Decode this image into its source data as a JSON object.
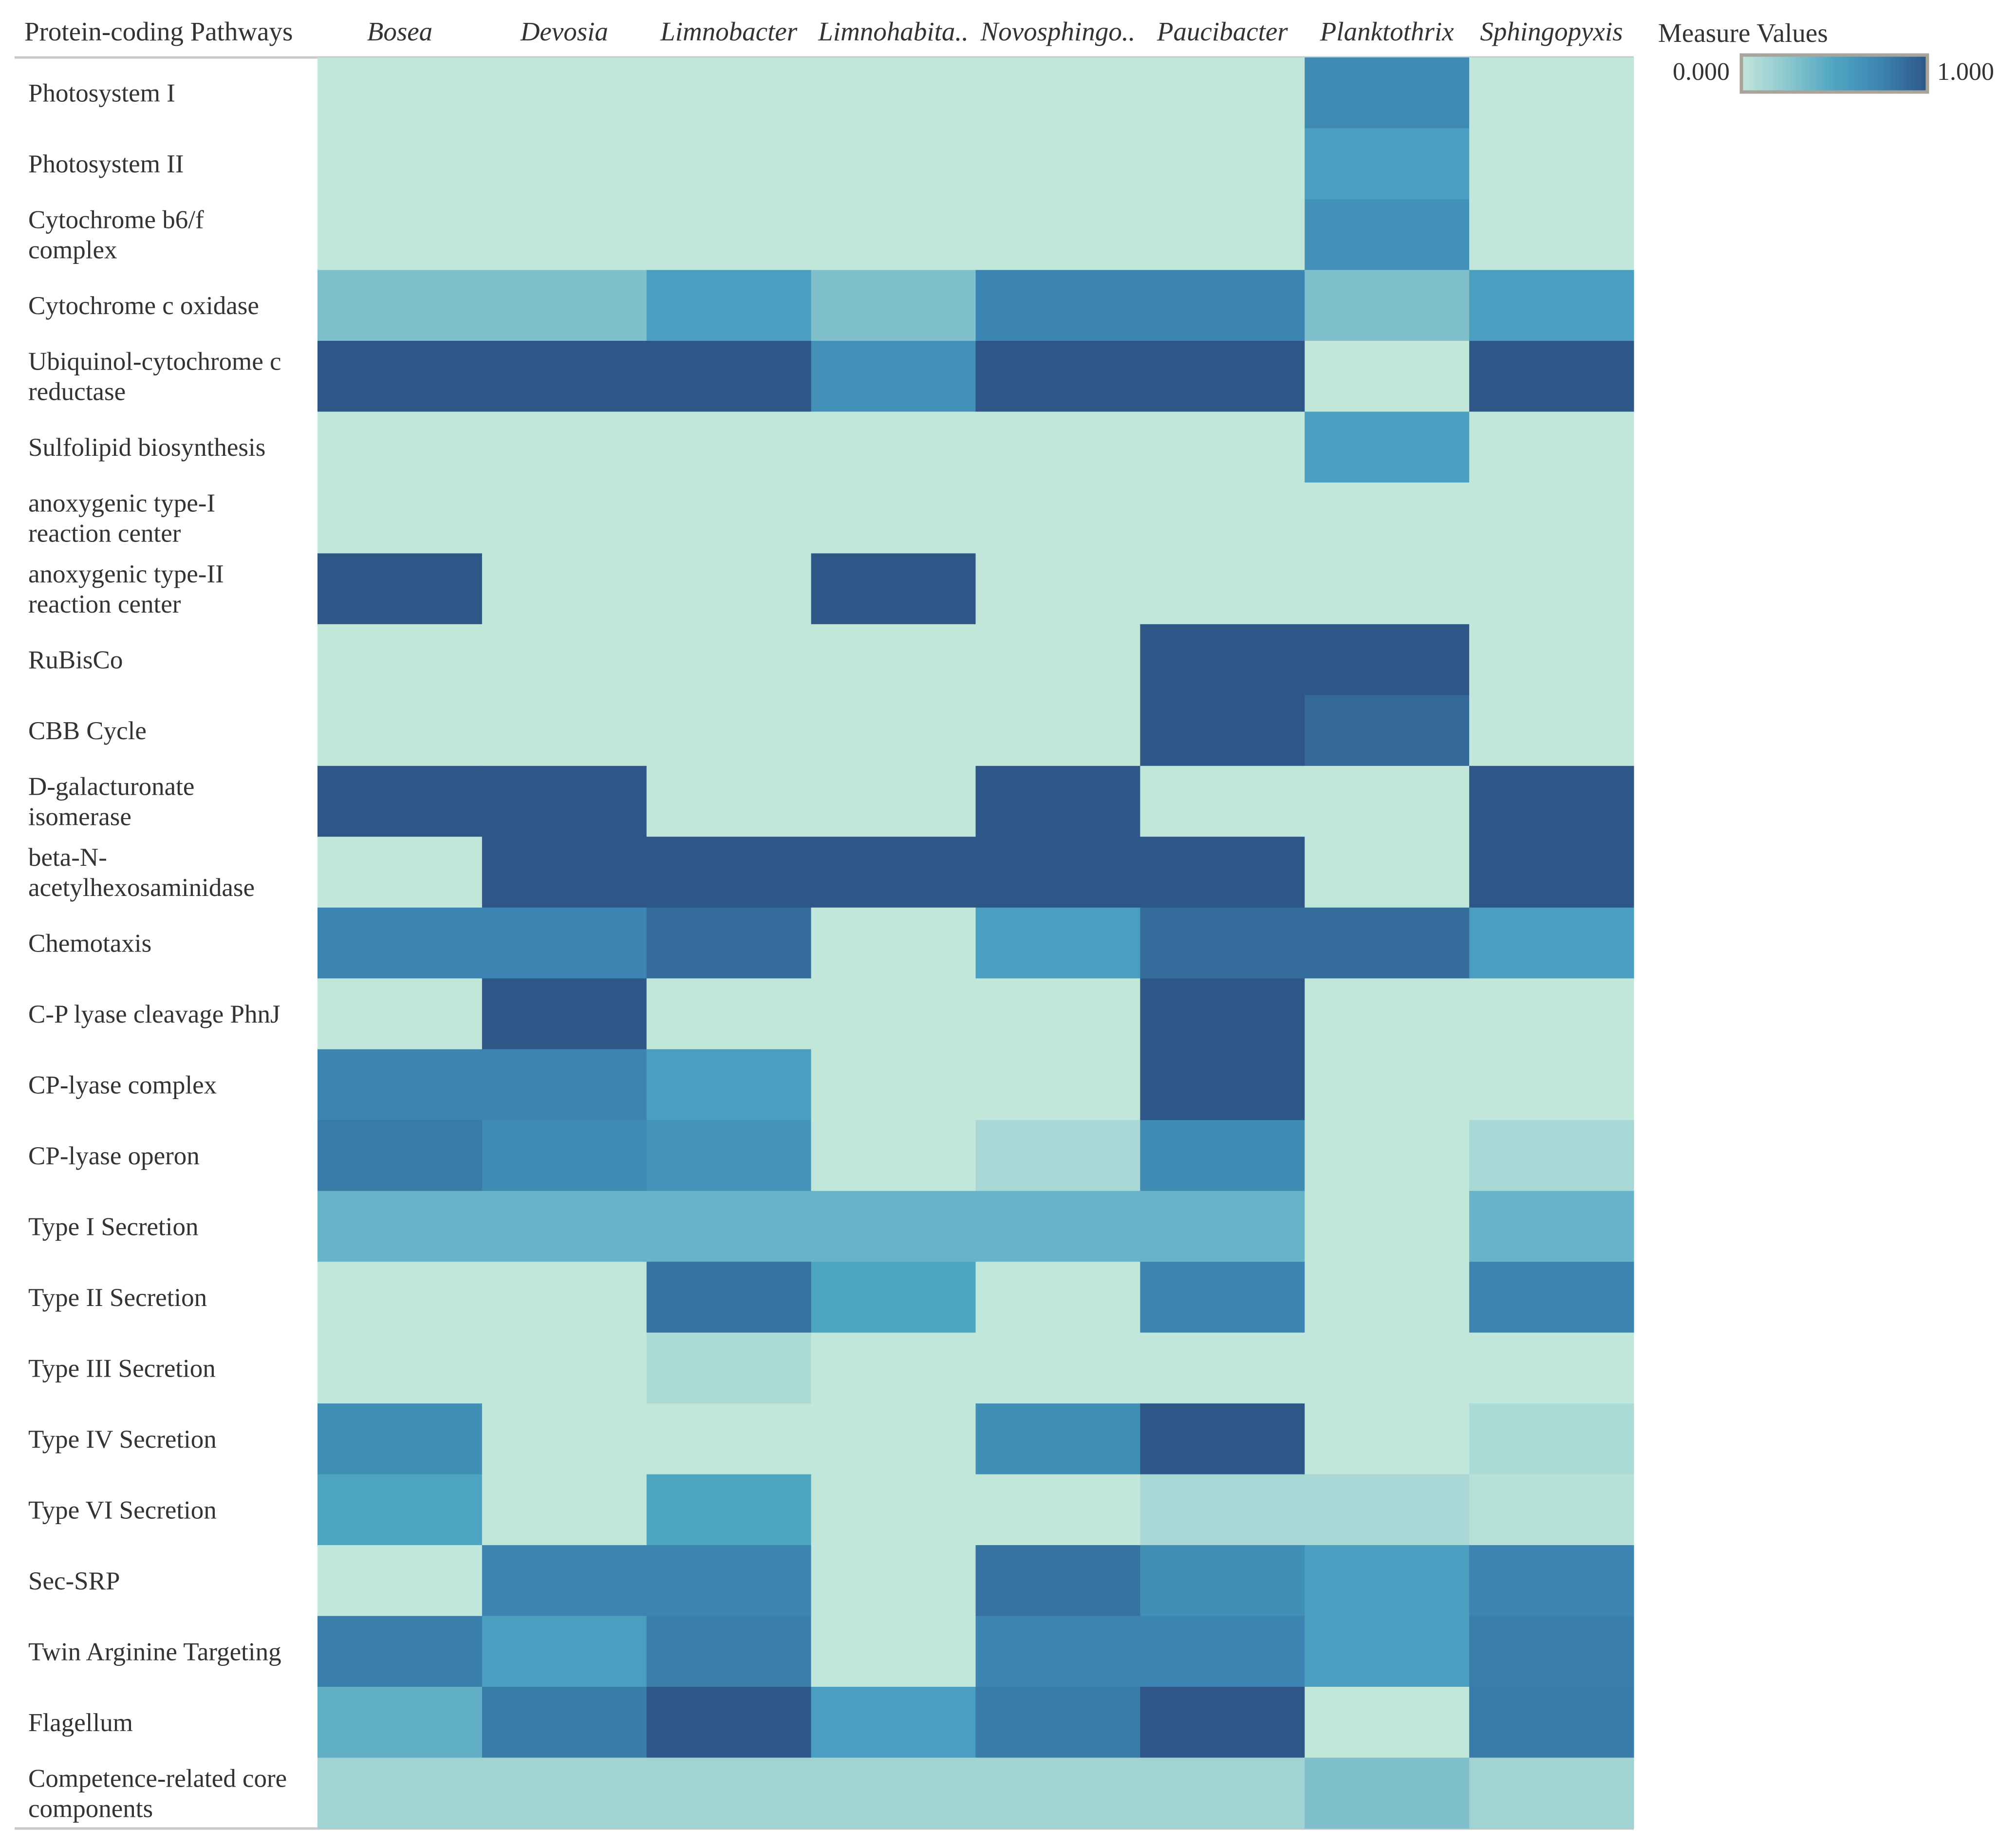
{
  "chart_data": {
    "type": "heatmap",
    "row_header": "Protein-coding Pathways",
    "columns": [
      "Bosea",
      "Devosia",
      "Limnobacter",
      "Limnohabita..",
      "Novosphingo..",
      "Paucibacter",
      "Planktothrix",
      "Sphingopyxis"
    ],
    "rows": [
      {
        "label": [
          "Photosystem I"
        ],
        "values": [
          0,
          0,
          0,
          0,
          0,
          0,
          0.7,
          0
        ]
      },
      {
        "label": [
          "Photosystem II"
        ],
        "values": [
          0,
          0,
          0,
          0,
          0,
          0,
          0.55,
          0
        ]
      },
      {
        "label": [
          "Cytochrome b6/f",
          "complex"
        ],
        "values": [
          0,
          0,
          0,
          0,
          0,
          0,
          0.65,
          0
        ]
      },
      {
        "label": [
          "Cytochrome c oxidase"
        ],
        "values": [
          0.3,
          0.3,
          0.55,
          0.3,
          0.75,
          0.75,
          0.3,
          0.55
        ]
      },
      {
        "label": [
          "Ubiquinol-cytochrome c",
          "reductase"
        ],
        "values": [
          1,
          1,
          1,
          0.65,
          1,
          1,
          0,
          1
        ]
      },
      {
        "label": [
          "Sulfolipid biosynthesis"
        ],
        "values": [
          0,
          0,
          0,
          0,
          0,
          0,
          0.55,
          0
        ]
      },
      {
        "label": [
          "anoxygenic type-I",
          "reaction center"
        ],
        "values": [
          0,
          0,
          0,
          0,
          0,
          0,
          0,
          0
        ]
      },
      {
        "label": [
          "anoxygenic type-II",
          "reaction center"
        ],
        "values": [
          1,
          0,
          0,
          1,
          0,
          0,
          0,
          0
        ]
      },
      {
        "label": [
          "RuBisCo"
        ],
        "values": [
          0,
          0,
          0,
          0,
          0,
          1,
          1,
          0
        ]
      },
      {
        "label": [
          "CBB Cycle"
        ],
        "values": [
          0,
          0,
          0,
          0,
          0,
          1,
          0.9,
          0
        ]
      },
      {
        "label": [
          "D-galacturonate",
          "isomerase"
        ],
        "values": [
          1,
          1,
          0,
          0,
          1,
          0,
          0,
          1
        ]
      },
      {
        "label": [
          "beta-N-",
          "acetylhexosaminidase"
        ],
        "values": [
          0,
          1,
          1,
          1,
          1,
          1,
          0,
          1
        ]
      },
      {
        "label": [
          "Chemotaxis"
        ],
        "values": [
          0.75,
          0.75,
          0.88,
          0,
          0.55,
          0.88,
          0.88,
          0.55
        ]
      },
      {
        "label": [
          "C-P lyase cleavage PhnJ"
        ],
        "values": [
          0,
          1,
          0,
          0,
          0,
          1,
          0,
          0
        ]
      },
      {
        "label": [
          "CP-lyase complex"
        ],
        "values": [
          0.75,
          0.75,
          0.55,
          0,
          0,
          1,
          0,
          0
        ]
      },
      {
        "label": [
          "CP-lyase operon"
        ],
        "values": [
          0.8,
          0.7,
          0.62,
          0,
          0.12,
          0.7,
          0,
          0.12
        ]
      },
      {
        "label": [
          "Type I Secretion"
        ],
        "values": [
          0.4,
          0.4,
          0.4,
          0.4,
          0.4,
          0.4,
          0,
          0.4
        ]
      },
      {
        "label": [
          "Type II Secretion"
        ],
        "values": [
          0,
          0,
          0.85,
          0.5,
          0,
          0.75,
          0,
          0.75
        ]
      },
      {
        "label": [
          "Type III Secretion"
        ],
        "values": [
          0,
          0,
          0.1,
          0,
          0,
          0,
          0,
          0
        ]
      },
      {
        "label": [
          "Type IV Secretion"
        ],
        "values": [
          0.67,
          0,
          0,
          0,
          0.67,
          1,
          0,
          0.1
        ]
      },
      {
        "label": [
          "Type VI Secretion"
        ],
        "values": [
          0.5,
          0,
          0.5,
          0,
          0,
          0.12,
          0.12,
          0.05
        ]
      },
      {
        "label": [
          "Sec-SRP"
        ],
        "values": [
          0,
          0.75,
          0.75,
          0,
          0.85,
          0.67,
          0.55,
          0.75
        ]
      },
      {
        "label": [
          "Twin Arginine Targeting"
        ],
        "values": [
          0.78,
          0.55,
          0.78,
          0,
          0.75,
          0.75,
          0.55,
          0.78
        ]
      },
      {
        "label": [
          "Flagellum"
        ],
        "values": [
          0.42,
          0.8,
          1,
          0.55,
          0.8,
          1,
          0,
          0.8
        ]
      },
      {
        "label": [
          "Competence-related core",
          "components"
        ],
        "values": [
          0.15,
          0.15,
          0.15,
          0.15,
          0.15,
          0.15,
          0.3,
          0.15
        ]
      }
    ],
    "legend": {
      "title": "Measure Values",
      "min": 0.0,
      "max": 1.0,
      "min_label": "0.000",
      "max_label": "1.000"
    },
    "color_scale": [
      "#c1e6da",
      "#8cc7cf",
      "#4ea5c2",
      "#3c84b1",
      "#2e5788"
    ]
  }
}
